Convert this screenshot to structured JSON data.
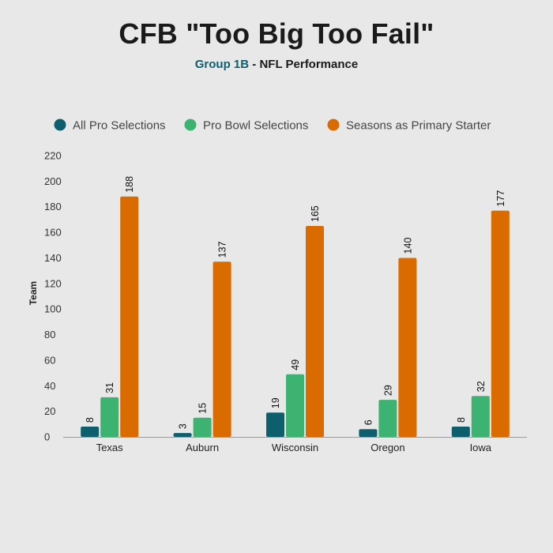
{
  "title": "CFB \"Too Big Too Fail\"",
  "subtitle_group": "Group 1B",
  "subtitle_sep": " - ",
  "subtitle_rest": "NFL Performance",
  "chart_data": {
    "type": "bar",
    "title": "CFB \"Too Big Too Fail\"",
    "subtitle": "Group 1B - NFL Performance",
    "xlabel": "",
    "ylabel": "Team",
    "ylim": [
      0,
      220
    ],
    "yticks": [
      0,
      20,
      40,
      60,
      80,
      100,
      120,
      140,
      160,
      180,
      200,
      220
    ],
    "grid": false,
    "legend_position": "top",
    "categories": [
      "Texas",
      "Auburn",
      "Wisconsin",
      "Oregon",
      "Iowa"
    ],
    "series": [
      {
        "name": "All Pro Selections",
        "color": "#0d5f6e",
        "values": [
          8,
          3,
          19,
          6,
          8
        ]
      },
      {
        "name": "Pro Bowl Selections",
        "color": "#3cb371",
        "values": [
          31,
          15,
          49,
          29,
          32
        ]
      },
      {
        "name": "Seasons as Primary Starter",
        "color": "#d96b00",
        "values": [
          188,
          137,
          165,
          140,
          177
        ]
      }
    ]
  }
}
